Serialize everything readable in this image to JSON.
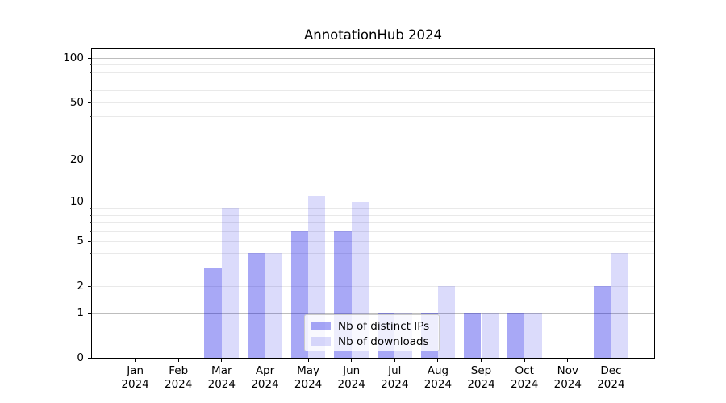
{
  "title": "AnnotationHub 2024",
  "legend": {
    "items": [
      {
        "label": "Nb of distinct IPs",
        "color": "#0000e6",
        "alpha": 0.34
      },
      {
        "label": "Nb of downloads",
        "color": "#0000e6",
        "alpha": 0.14
      }
    ],
    "position": "lower center"
  },
  "y_axis": {
    "tick_labels": [
      "0",
      "1",
      "2",
      "5",
      "10",
      "20",
      "50",
      "100"
    ],
    "tick_values": [
      0,
      1,
      2,
      5,
      10,
      20,
      50,
      100
    ]
  },
  "x_axis": {
    "months": [
      "Jan",
      "Feb",
      "Mar",
      "Apr",
      "May",
      "Jun",
      "Jul",
      "Aug",
      "Sep",
      "Oct",
      "Nov",
      "Dec"
    ],
    "year": "2024"
  },
  "chart_data": {
    "type": "bar",
    "title": "AnnotationHub 2024",
    "categories": [
      "Jan 2024",
      "Feb 2024",
      "Mar 2024",
      "Apr 2024",
      "May 2024",
      "Jun 2024",
      "Jul 2024",
      "Aug 2024",
      "Sep 2024",
      "Oct 2024",
      "Nov 2024",
      "Dec 2024"
    ],
    "series": [
      {
        "name": "Nb of distinct IPs",
        "values": [
          0,
          0,
          3,
          4,
          6,
          6,
          1,
          1,
          1,
          1,
          0,
          2
        ]
      },
      {
        "name": "Nb of downloads",
        "values": [
          0,
          0,
          9,
          4,
          11,
          10,
          1,
          2,
          1,
          1,
          0,
          4
        ]
      }
    ],
    "xlabel": "",
    "ylabel": "",
    "yscale": "log1p",
    "ylim": [
      0,
      114
    ],
    "yticks": [
      0,
      1,
      2,
      5,
      10,
      20,
      50,
      100
    ],
    "major_gridlines": [
      1,
      10,
      100
    ],
    "minor_gridlines": [
      2,
      3,
      4,
      5,
      6,
      7,
      8,
      9,
      20,
      30,
      40,
      50,
      60,
      70,
      80,
      90
    ],
    "grid": true,
    "legend_position": "lower center"
  },
  "colors": {
    "bar_base": "#0000e6",
    "major_grid": "#bdbdbd",
    "minor_grid": "#e9e9e9",
    "axis": "#000000",
    "background": "#ffffff"
  }
}
